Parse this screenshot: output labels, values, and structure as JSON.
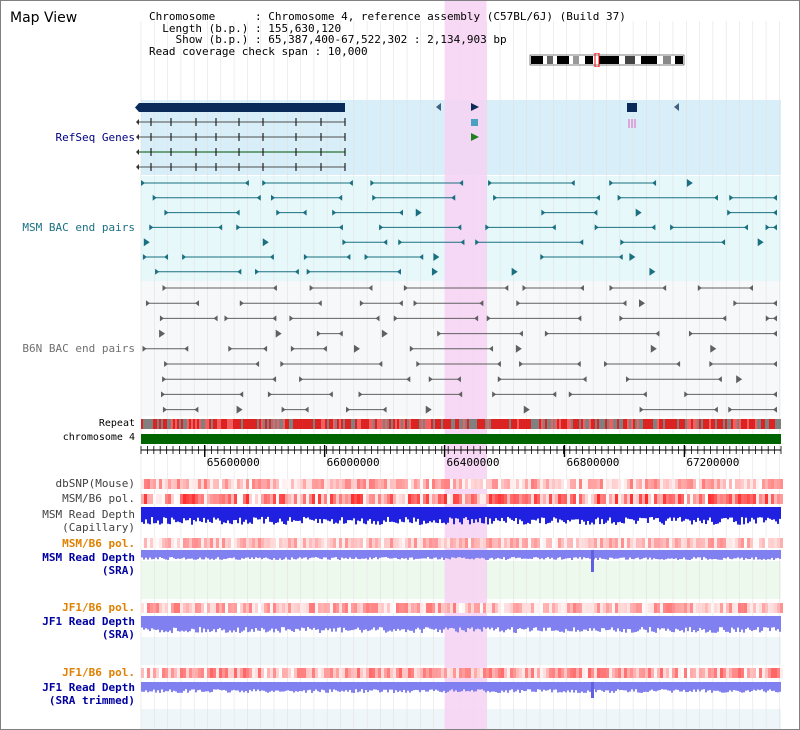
{
  "title": "Map View",
  "info": {
    "chromosome_key": "Chromosome",
    "chromosome_val": "Chromosome 4, reference assembly (C57BL/6J) (Build 37)",
    "length_key": "Length (b.p.)",
    "length_val": "155,630,120",
    "show_key": "Show (b.p.)",
    "show_val": "65,387,400-67,522,302 : 2,134,903 bp",
    "span_key": "Read coverage check span",
    "span_val": "10,000"
  },
  "tracks": {
    "refseq": "RefSeq Genes",
    "msm_bac": "MSM BAC end pairs",
    "b6n_bac": "B6N BAC end pairs",
    "repeat": "Repeat",
    "chromosome": "chromosome 4",
    "dbsnp": "dbSNP(Mouse)",
    "msm_b6_pol_1": "MSM/B6 pol.",
    "msm_depth_cap_1": "MSM Read Depth",
    "msm_depth_cap_2": "(Capillary)",
    "msm_b6_pol_2": "MSM/B6 pol.",
    "msm_depth_sra_1": "MSM Read Depth",
    "msm_depth_sra_2": "(SRA)",
    "jf1_b6_pol_1": "JF1/B6 pol.",
    "jf1_depth_sra_1": "JF1 Read Depth",
    "jf1_depth_sra_2": "(SRA)",
    "jf1_b6_pol_2": "JF1/B6 pol.",
    "jf1_depth_trim_1": "JF1 Read Depth",
    "jf1_depth_trim_2": "(SRA trimmed)"
  },
  "axis": {
    "ticks": [
      "65600000",
      "66000000",
      "66400000",
      "66800000",
      "67200000"
    ],
    "range_bp": [
      65387400,
      67522302
    ]
  },
  "highlight_bp": [
    66400000,
    66540000
  ],
  "colors": {
    "refseq_bg": "#d8eef8",
    "refseq_text": "#000080",
    "msm_bg": "#e6f8fa",
    "msm_feature": "#1a7080",
    "msm_text": "#1a7080",
    "b6n_feature": "#606060",
    "b6n_text": "#707070",
    "chromosome": "#006400",
    "highlight": "#f7d2f3",
    "pol": "#ff4040",
    "depth_dark": "#2020e0",
    "depth_light": "#8080f0",
    "pol_label": "#e08000",
    "depth_label": "#0000a0"
  }
}
